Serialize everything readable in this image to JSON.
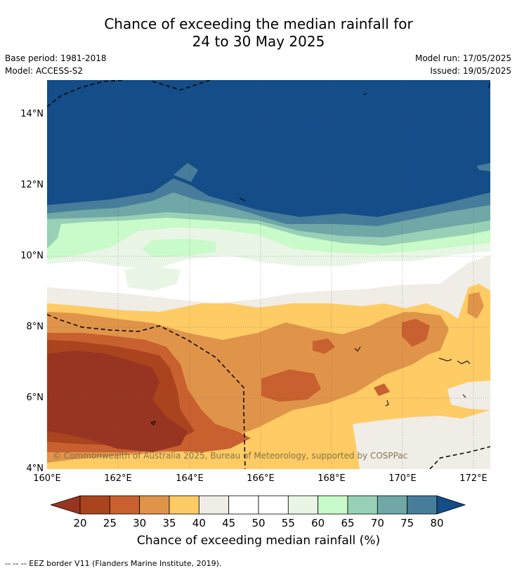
{
  "header": {
    "title_line1": "Chance of exceeding the median rainfall for",
    "title_line2": "24 to 30 May 2025",
    "base_period": "Base period: 1981-2018",
    "model": "Model: ACCESS-S2",
    "model_run": "Model run: 17/05/2025",
    "issued": "Issued: 19/05/2025"
  },
  "map": {
    "lat_labels": [
      "14°N",
      "12°N",
      "10°N",
      "8°N",
      "6°N",
      "4°N"
    ],
    "lon_labels": [
      "160°E",
      "162°E",
      "164°E",
      "166°E",
      "168°E",
      "170°E",
      "172°E"
    ],
    "copyright": "© Commonwealth of Australia 2025, Bureau of Meteorology, supported by COSPPac"
  },
  "legend": {
    "ticks": [
      "20",
      "25",
      "30",
      "35",
      "40",
      "45",
      "50",
      "55",
      "60",
      "65",
      "70",
      "75",
      "80"
    ],
    "colors": [
      "#a9441f",
      "#c9602f",
      "#e0944a",
      "#fecb65",
      "#f0ece6",
      "#ffffff",
      "#ffffff",
      "#e9f6e6",
      "#c9fac9",
      "#98d0b7",
      "#70a7a7",
      "#477d9b"
    ],
    "under_color": "#983522",
    "over_color": "#144d87",
    "title": "Chance of exceeding median rainfall (%)"
  },
  "footer": {
    "eez_note": "--  --  -- EEZ border V11 (Flanders Marine Institute, 2019)."
  }
}
